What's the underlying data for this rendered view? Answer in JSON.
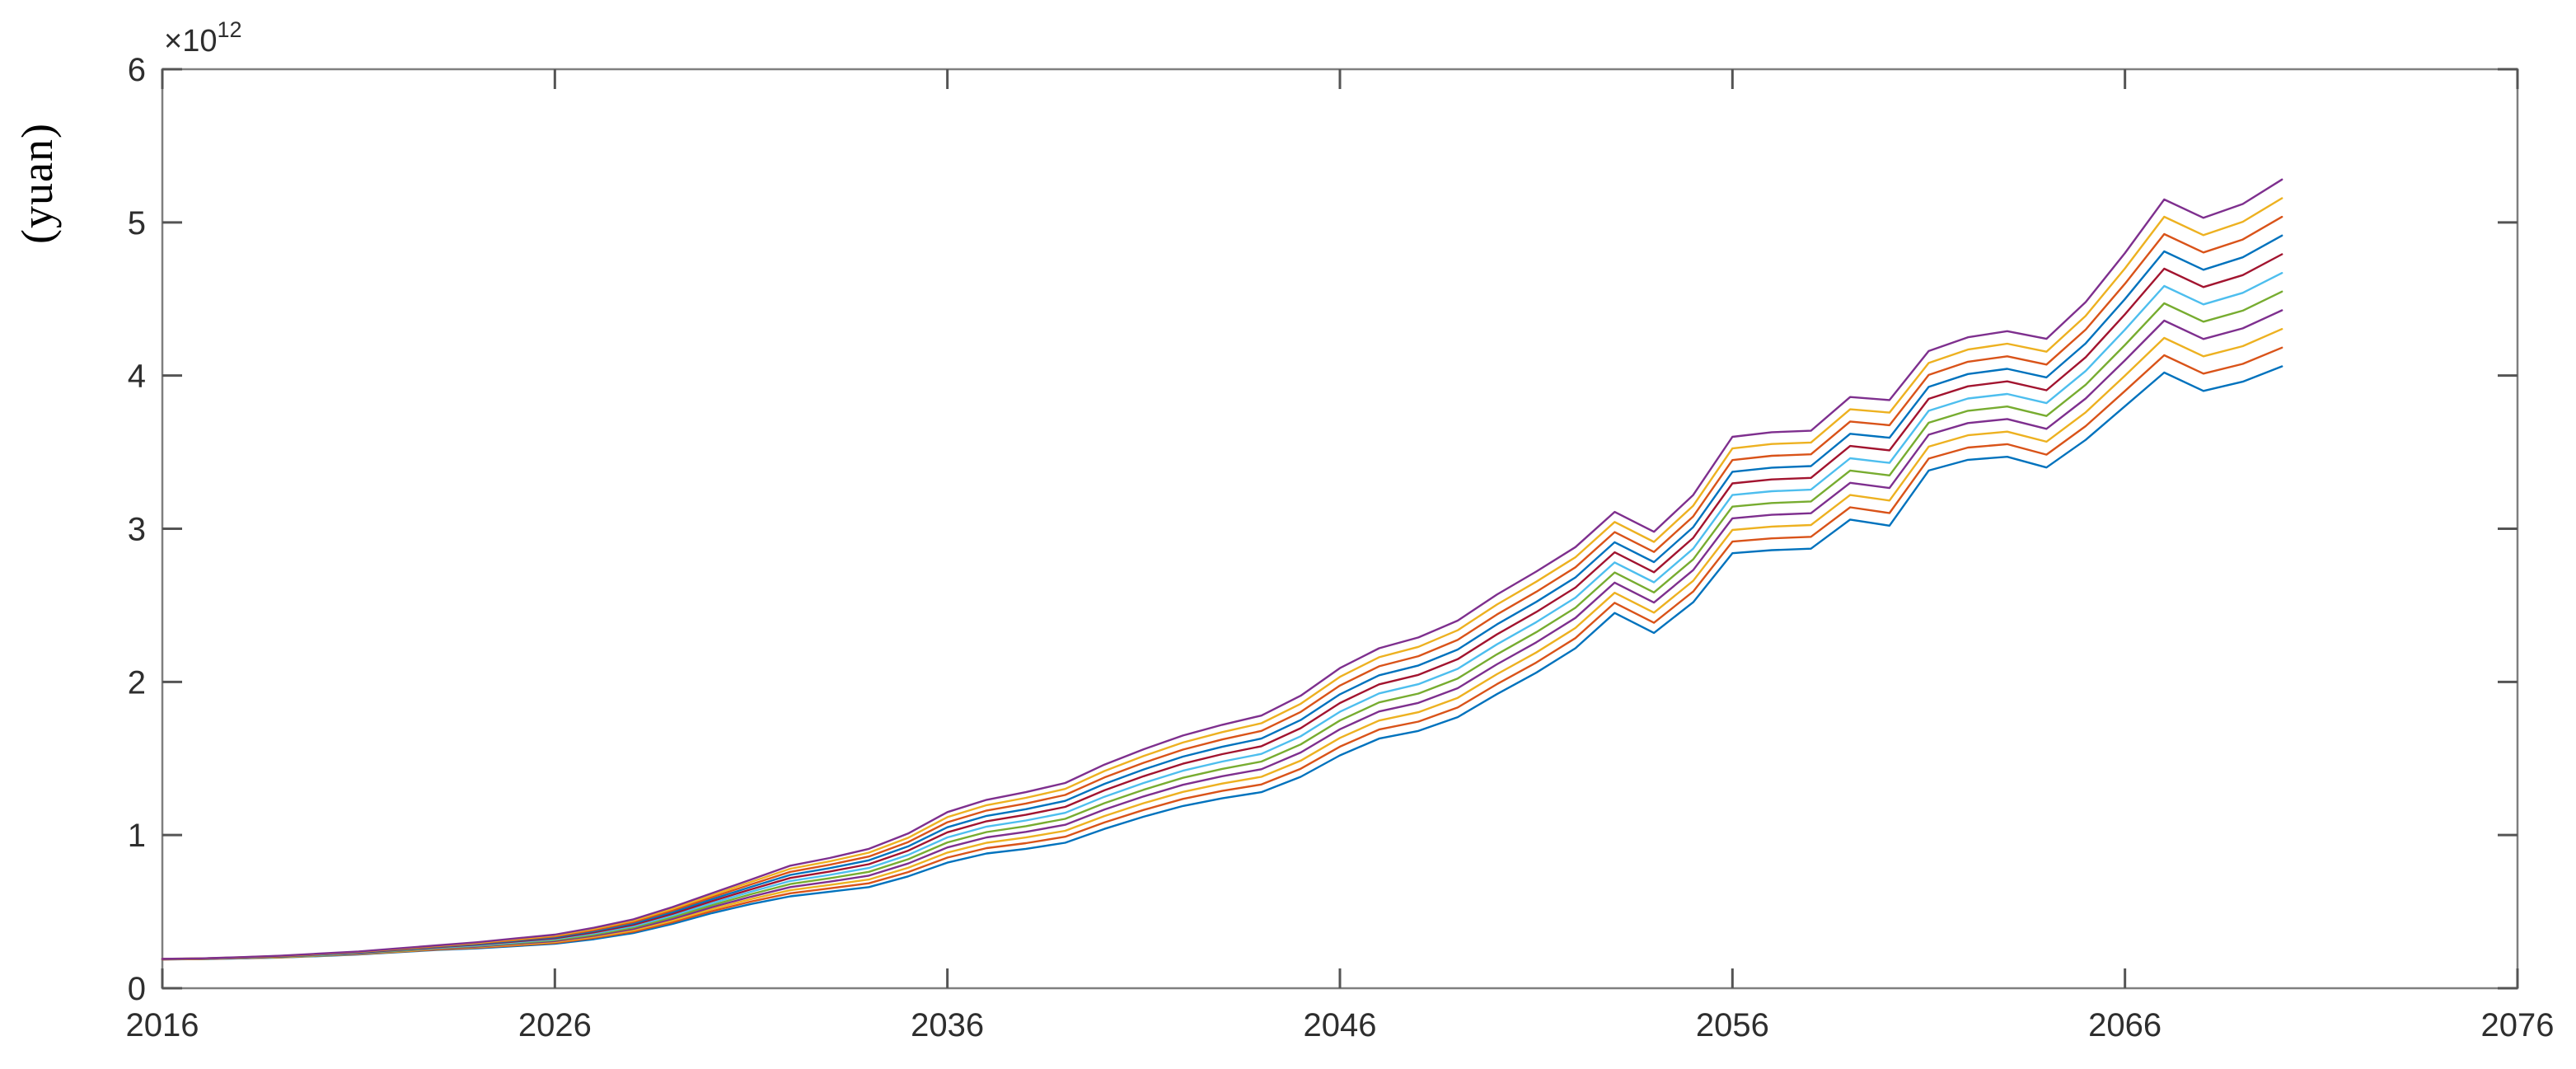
{
  "chart_data": {
    "type": "line",
    "title": "",
    "xlabel": "",
    "ylabel": "(yuan)",
    "y_scale_label": {
      "base": "×10",
      "exponent": "12"
    },
    "xlim": [
      2016,
      2076
    ],
    "ylim": [
      0,
      6
    ],
    "x_ticks": [
      "2016",
      "2026",
      "2036",
      "2046",
      "2056",
      "2066",
      "2076"
    ],
    "y_ticks": [
      "0",
      "1",
      "2",
      "3",
      "4",
      "5",
      "6"
    ],
    "grid": false,
    "legend_position": "none",
    "box": true,
    "axis_color": "#7f7f7f",
    "tick_color": "#545454",
    "tick_label_color": "#2e2e2e",
    "x": [
      2016,
      2017,
      2018,
      2019,
      2020,
      2021,
      2022,
      2023,
      2024,
      2025,
      2026,
      2027,
      2028,
      2029,
      2030,
      2031,
      2032,
      2033,
      2034,
      2035,
      2036,
      2037,
      2038,
      2039,
      2040,
      2041,
      2042,
      2043,
      2044,
      2045,
      2046,
      2047,
      2048,
      2049,
      2050,
      2051,
      2052,
      2053,
      2054,
      2055,
      2056,
      2057,
      2058,
      2059,
      2060,
      2061,
      2062,
      2063,
      2064,
      2065,
      2066,
      2067,
      2068,
      2069,
      2070
    ],
    "series": [
      {
        "name": "series-1",
        "color": "#0072BD",
        "values": [
          0.188,
          0.19,
          0.195,
          0.2,
          0.21,
          0.22,
          0.235,
          0.25,
          0.26,
          0.275,
          0.29,
          0.32,
          0.36,
          0.42,
          0.49,
          0.55,
          0.6,
          0.63,
          0.66,
          0.73,
          0.82,
          0.88,
          0.91,
          0.95,
          1.04,
          1.12,
          1.19,
          1.24,
          1.28,
          1.38,
          1.52,
          1.63,
          1.68,
          1.77,
          1.92,
          2.06,
          2.22,
          2.45,
          2.32,
          2.52,
          2.84,
          2.86,
          2.87,
          3.06,
          3.02,
          3.38,
          3.45,
          3.47,
          3.4,
          3.58,
          3.8,
          4.02,
          3.9,
          3.96,
          4.06
        ]
      },
      {
        "name": "series-2",
        "color": "#D95319",
        "values": [
          0.188,
          0.191,
          0.196,
          0.201,
          0.212,
          0.222,
          0.238,
          0.253,
          0.264,
          0.28,
          0.296,
          0.328,
          0.369,
          0.431,
          0.503,
          0.566,
          0.62,
          0.652,
          0.685,
          0.758,
          0.853,
          0.915,
          0.947,
          0.989,
          1.082,
          1.164,
          1.236,
          1.288,
          1.33,
          1.433,
          1.577,
          1.689,
          1.741,
          1.833,
          1.985,
          2.126,
          2.286,
          2.516,
          2.386,
          2.59,
          2.916,
          2.937,
          2.947,
          3.14,
          3.102,
          3.458,
          3.53,
          3.552,
          3.484,
          3.67,
          3.9,
          4.133,
          4.013,
          4.076,
          4.182
        ]
      },
      {
        "name": "series-3",
        "color": "#EDB120",
        "values": [
          0.189,
          0.191,
          0.197,
          0.202,
          0.213,
          0.224,
          0.24,
          0.256,
          0.268,
          0.285,
          0.302,
          0.335,
          0.378,
          0.442,
          0.516,
          0.582,
          0.64,
          0.674,
          0.71,
          0.786,
          0.886,
          0.95,
          0.984,
          1.028,
          1.124,
          1.208,
          1.282,
          1.336,
          1.38,
          1.486,
          1.634,
          1.748,
          1.802,
          1.896,
          2.05,
          2.192,
          2.352,
          2.582,
          2.452,
          2.66,
          2.992,
          3.014,
          3.024,
          3.22,
          3.184,
          3.536,
          3.61,
          3.634,
          3.568,
          3.76,
          4.0,
          4.246,
          4.126,
          4.192,
          4.304
        ]
      },
      {
        "name": "series-4",
        "color": "#7E2F8E",
        "values": [
          0.189,
          0.192,
          0.197,
          0.204,
          0.215,
          0.226,
          0.243,
          0.259,
          0.272,
          0.29,
          0.308,
          0.343,
          0.387,
          0.453,
          0.529,
          0.598,
          0.66,
          0.696,
          0.735,
          0.814,
          0.919,
          0.985,
          1.021,
          1.067,
          1.166,
          1.252,
          1.328,
          1.384,
          1.43,
          1.539,
          1.691,
          1.807,
          1.863,
          1.959,
          2.115,
          2.258,
          2.418,
          2.648,
          2.518,
          2.73,
          3.068,
          3.091,
          3.101,
          3.3,
          3.266,
          3.614,
          3.69,
          3.716,
          3.652,
          3.85,
          4.1,
          4.359,
          4.239,
          4.308,
          4.426
        ]
      },
      {
        "name": "series-5",
        "color": "#77AC30",
        "values": [
          0.19,
          0.192,
          0.198,
          0.205,
          0.216,
          0.228,
          0.245,
          0.262,
          0.276,
          0.295,
          0.314,
          0.35,
          0.396,
          0.464,
          0.542,
          0.614,
          0.68,
          0.718,
          0.76,
          0.842,
          0.952,
          1.02,
          1.058,
          1.106,
          1.208,
          1.296,
          1.374,
          1.432,
          1.48,
          1.592,
          1.748,
          1.866,
          1.924,
          2.022,
          2.18,
          2.324,
          2.484,
          2.714,
          2.584,
          2.8,
          3.144,
          3.168,
          3.178,
          3.38,
          3.348,
          3.692,
          3.77,
          3.798,
          3.736,
          3.94,
          4.2,
          4.472,
          4.352,
          4.424,
          4.548
        ]
      },
      {
        "name": "series-6",
        "color": "#4DBEEE",
        "values": [
          0.19,
          0.193,
          0.199,
          0.206,
          0.218,
          0.23,
          0.248,
          0.265,
          0.28,
          0.3,
          0.32,
          0.358,
          0.405,
          0.475,
          0.555,
          0.63,
          0.7,
          0.74,
          0.785,
          0.87,
          0.985,
          1.055,
          1.095,
          1.145,
          1.25,
          1.34,
          1.42,
          1.48,
          1.53,
          1.645,
          1.805,
          1.925,
          1.985,
          2.085,
          2.245,
          2.39,
          2.55,
          2.78,
          2.65,
          2.87,
          3.22,
          3.245,
          3.255,
          3.46,
          3.43,
          3.77,
          3.85,
          3.88,
          3.82,
          4.03,
          4.3,
          4.585,
          4.465,
          4.54,
          4.67
        ]
      },
      {
        "name": "series-7",
        "color": "#A2142F",
        "values": [
          0.19,
          0.193,
          0.2,
          0.207,
          0.22,
          0.232,
          0.25,
          0.268,
          0.284,
          0.305,
          0.326,
          0.365,
          0.414,
          0.486,
          0.568,
          0.646,
          0.72,
          0.762,
          0.81,
          0.898,
          1.018,
          1.09,
          1.132,
          1.184,
          1.292,
          1.384,
          1.466,
          1.528,
          1.58,
          1.698,
          1.862,
          1.984,
          2.046,
          2.148,
          2.31,
          2.456,
          2.616,
          2.846,
          2.716,
          2.94,
          3.296,
          3.322,
          3.332,
          3.54,
          3.512,
          3.848,
          3.93,
          3.962,
          3.904,
          4.12,
          4.4,
          4.698,
          4.578,
          4.656,
          4.792
        ]
      },
      {
        "name": "series-8",
        "color": "#0072BD",
        "values": [
          0.191,
          0.194,
          0.201,
          0.208,
          0.221,
          0.234,
          0.253,
          0.271,
          0.288,
          0.31,
          0.332,
          0.373,
          0.423,
          0.497,
          0.581,
          0.662,
          0.74,
          0.784,
          0.835,
          0.926,
          1.051,
          1.125,
          1.169,
          1.223,
          1.334,
          1.428,
          1.512,
          1.576,
          1.63,
          1.751,
          1.919,
          2.043,
          2.107,
          2.211,
          2.375,
          2.522,
          2.682,
          2.912,
          2.782,
          3.01,
          3.372,
          3.399,
          3.409,
          3.62,
          3.594,
          3.926,
          4.01,
          4.044,
          3.988,
          4.21,
          4.5,
          4.811,
          4.691,
          4.772,
          4.914
        ]
      },
      {
        "name": "series-9",
        "color": "#D95319",
        "values": [
          0.191,
          0.194,
          0.201,
          0.21,
          0.223,
          0.236,
          0.255,
          0.274,
          0.292,
          0.315,
          0.338,
          0.38,
          0.432,
          0.508,
          0.594,
          0.678,
          0.76,
          0.806,
          0.86,
          0.954,
          1.084,
          1.16,
          1.206,
          1.262,
          1.376,
          1.472,
          1.558,
          1.624,
          1.68,
          1.804,
          1.976,
          2.102,
          2.168,
          2.274,
          2.44,
          2.588,
          2.748,
          2.978,
          2.848,
          3.08,
          3.448,
          3.476,
          3.486,
          3.7,
          3.676,
          4.004,
          4.09,
          4.126,
          4.072,
          4.3,
          4.6,
          4.924,
          4.804,
          4.888,
          5.036
        ]
      },
      {
        "name": "series-10",
        "color": "#EDB120",
        "values": [
          0.192,
          0.195,
          0.202,
          0.211,
          0.224,
          0.238,
          0.258,
          0.277,
          0.296,
          0.32,
          0.344,
          0.388,
          0.441,
          0.519,
          0.607,
          0.694,
          0.78,
          0.828,
          0.885,
          0.982,
          1.117,
          1.195,
          1.243,
          1.301,
          1.418,
          1.516,
          1.604,
          1.672,
          1.73,
          1.857,
          2.033,
          2.161,
          2.229,
          2.337,
          2.505,
          2.654,
          2.814,
          3.044,
          2.914,
          3.15,
          3.524,
          3.553,
          3.563,
          3.78,
          3.758,
          4.082,
          4.17,
          4.208,
          4.156,
          4.39,
          4.7,
          5.037,
          4.917,
          5.004,
          5.158
        ]
      },
      {
        "name": "series-11",
        "color": "#7E2F8E",
        "values": [
          0.192,
          0.195,
          0.203,
          0.212,
          0.226,
          0.24,
          0.26,
          0.28,
          0.3,
          0.325,
          0.35,
          0.395,
          0.45,
          0.53,
          0.62,
          0.71,
          0.8,
          0.85,
          0.91,
          1.01,
          1.15,
          1.23,
          1.28,
          1.34,
          1.46,
          1.56,
          1.65,
          1.72,
          1.78,
          1.91,
          2.09,
          2.22,
          2.29,
          2.4,
          2.57,
          2.72,
          2.88,
          3.11,
          2.98,
          3.22,
          3.6,
          3.63,
          3.64,
          3.86,
          3.84,
          4.16,
          4.25,
          4.29,
          4.24,
          4.48,
          4.8,
          5.15,
          5.03,
          5.12,
          5.28
        ]
      }
    ]
  }
}
